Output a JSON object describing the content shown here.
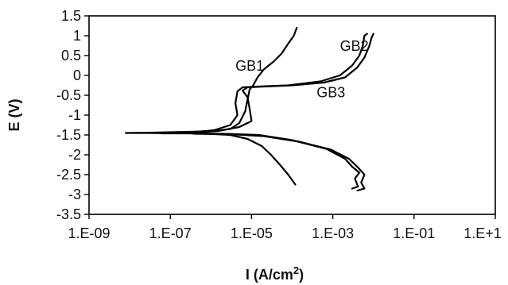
{
  "chart_data": {
    "type": "line",
    "title": "",
    "xlabel": "I (A/cm",
    "xlabel_sup": "2",
    "xlabel_end": ")",
    "ylabel": "E (V)",
    "x_scale": "log",
    "xlim": [
      1e-09,
      10
    ],
    "ylim": [
      -3.5,
      1.5
    ],
    "grid": false,
    "legend": "none",
    "x_ticks": [
      {
        "value": 1e-09,
        "label": "1.E-09"
      },
      {
        "value": 1e-07,
        "label": "1.E-07"
      },
      {
        "value": 1e-05,
        "label": "1.E-05"
      },
      {
        "value": 0.001,
        "label": "1.E-03"
      },
      {
        "value": 0.1,
        "label": "1.E-01"
      },
      {
        "value": 10,
        "label": "1.E+1"
      }
    ],
    "y_ticks": [
      {
        "value": 1.5,
        "label": "1.5"
      },
      {
        "value": 1,
        "label": "1"
      },
      {
        "value": 0.5,
        "label": "0.5"
      },
      {
        "value": 0,
        "label": "0"
      },
      {
        "value": -0.5,
        "label": "-0.5"
      },
      {
        "value": -1,
        "label": "-1"
      },
      {
        "value": -1.5,
        "label": "-1.5"
      },
      {
        "value": -2,
        "label": "-2"
      },
      {
        "value": -2.5,
        "label": "-2.5"
      },
      {
        "value": -3,
        "label": "-3"
      },
      {
        "value": -3.5,
        "label": "-3.5"
      }
    ],
    "series": [
      {
        "name": "GB1",
        "label_at": {
          "x": 4e-06,
          "y": 0.12
        },
        "points": [
          [
            0.00012,
            -2.75
          ],
          [
            8e-05,
            -2.5
          ],
          [
            5e-05,
            -2.25
          ],
          [
            3e-05,
            -2.0
          ],
          [
            1.8e-05,
            -1.78
          ],
          [
            8e-06,
            -1.6
          ],
          [
            3e-06,
            -1.5
          ],
          [
            5e-07,
            -1.46
          ],
          [
            2e-08,
            -1.45
          ],
          [
            8e-09,
            -1.45
          ],
          [
            4e-08,
            -1.44
          ],
          [
            3e-07,
            -1.42
          ],
          [
            1.2e-06,
            -1.4
          ],
          [
            3e-06,
            -1.35
          ],
          [
            5e-06,
            -1.2
          ],
          [
            7e-06,
            -0.9
          ],
          [
            8e-06,
            -0.6
          ],
          [
            9e-06,
            -0.35
          ],
          [
            1.1e-05,
            -0.25
          ],
          [
            1.4e-05,
            -0.05
          ],
          [
            2e-05,
            0.15
          ],
          [
            3.5e-05,
            0.35
          ],
          [
            5.5e-05,
            0.55
          ],
          [
            8e-05,
            0.8
          ],
          [
            0.00011,
            1.0
          ],
          [
            0.00013,
            1.2
          ]
        ]
      },
      {
        "name": "GB2",
        "label_at": {
          "x": 0.0015,
          "y": 0.62
        },
        "points": [
          [
            0.003,
            -2.85
          ],
          [
            0.0042,
            -2.8
          ],
          [
            0.0035,
            -2.6
          ],
          [
            0.0045,
            -2.45
          ],
          [
            0.003,
            -2.3
          ],
          [
            0.002,
            -2.1
          ],
          [
            0.0007,
            -1.85
          ],
          [
            0.0001,
            -1.63
          ],
          [
            1.5e-05,
            -1.5
          ],
          [
            2e-06,
            -1.47
          ],
          [
            3e-07,
            -1.46
          ],
          [
            6e-08,
            -1.46
          ],
          [
            3e-07,
            -1.44
          ],
          [
            1.2e-06,
            -1.38
          ],
          [
            3e-06,
            -1.25
          ],
          [
            4.5e-06,
            -1.0
          ],
          [
            4e-06,
            -0.7
          ],
          [
            4.5e-06,
            -0.4
          ],
          [
            6e-06,
            -0.3
          ],
          [
            1.5e-05,
            -0.28
          ],
          [
            8e-05,
            -0.25
          ],
          [
            0.0005,
            -0.15
          ],
          [
            0.0015,
            0.0
          ],
          [
            0.003,
            0.25
          ],
          [
            0.0045,
            0.5
          ],
          [
            0.0055,
            0.75
          ],
          [
            0.006,
            1.0
          ],
          [
            0.007,
            1.05
          ]
        ]
      },
      {
        "name": "GB3",
        "label_at": {
          "x": 0.0004,
          "y": -0.55
        },
        "points": [
          [
            0.004,
            -2.9
          ],
          [
            0.006,
            -2.85
          ],
          [
            0.005,
            -2.7
          ],
          [
            0.006,
            -2.5
          ],
          [
            0.004,
            -2.3
          ],
          [
            0.0025,
            -2.1
          ],
          [
            0.0009,
            -1.87
          ],
          [
            0.00015,
            -1.67
          ],
          [
            2e-05,
            -1.53
          ],
          [
            3e-06,
            -1.48
          ],
          [
            4e-07,
            -1.47
          ],
          [
            3e-07,
            -1.45
          ],
          [
            1.5e-06,
            -1.4
          ],
          [
            5e-06,
            -1.3
          ],
          [
            1e-05,
            -1.15
          ],
          [
            9e-06,
            -0.85
          ],
          [
            8e-06,
            -0.55
          ],
          [
            6e-06,
            -0.38
          ],
          [
            8e-06,
            -0.3
          ],
          [
            2e-05,
            -0.28
          ],
          [
            0.0001,
            -0.25
          ],
          [
            0.0006,
            -0.18
          ],
          [
            0.002,
            -0.05
          ],
          [
            0.004,
            0.2
          ],
          [
            0.006,
            0.45
          ],
          [
            0.008,
            0.75
          ],
          [
            0.009,
            0.95
          ],
          [
            0.01,
            1.05
          ]
        ]
      }
    ]
  }
}
